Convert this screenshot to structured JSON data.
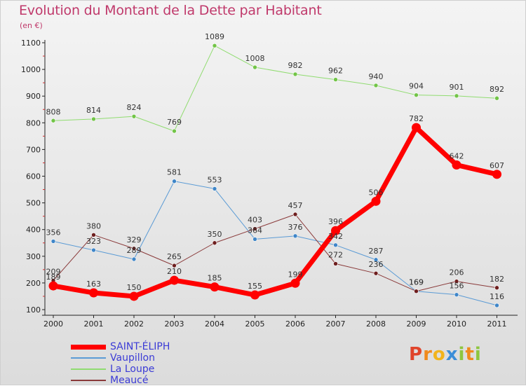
{
  "header": {
    "title": "Evolution du Montant de la Dette par Habitant",
    "subtitle": "(en €)"
  },
  "logo": {
    "text": "Proxiti",
    "letters": [
      {
        "ch": "P",
        "color": "#e0442b"
      },
      {
        "ch": "r",
        "color": "#f08a1c"
      },
      {
        "ch": "o",
        "color": "#f2b41c"
      },
      {
        "ch": "x",
        "color": "#3c8ed8"
      },
      {
        "ch": "i",
        "color": "#8ec63f"
      },
      {
        "ch": "t",
        "color": "#f08a1c"
      },
      {
        "ch": "i",
        "color": "#8ec63f"
      }
    ]
  },
  "chart_data": {
    "type": "line",
    "title": "Evolution du Montant de la Dette par Habitant",
    "xlabel": "",
    "ylabel": "(en €)",
    "ylim": [
      100,
      1100
    ],
    "yticks": [
      100,
      200,
      300,
      400,
      500,
      600,
      700,
      800,
      900,
      1000,
      1100
    ],
    "grid": false,
    "legend_position": "bottom-left",
    "categories": [
      "2000",
      "2001",
      "2002",
      "2003",
      "2004",
      "2005",
      "2006",
      "2007",
      "2008",
      "2009",
      "2010",
      "2011"
    ],
    "series": [
      {
        "name": "Vaupillon",
        "color": "#5b9bd5",
        "point_color": "#3f86c8",
        "width": 1,
        "values": [
          356,
          323,
          289,
          581,
          553,
          364,
          376,
          342,
          287,
          169,
          156,
          116
        ]
      },
      {
        "name": "La Loupe",
        "color": "#90dc70",
        "point_color": "#72c447",
        "width": 1,
        "values": [
          808,
          814,
          824,
          769,
          1089,
          1008,
          982,
          962,
          940,
          904,
          901,
          892
        ]
      },
      {
        "name": "Meaucé",
        "color": "#8a3a3a",
        "point_color": "#6e1f1f",
        "width": 1,
        "values": [
          209,
          380,
          329,
          265,
          350,
          403,
          457,
          272,
          236,
          169,
          206,
          182
        ]
      },
      {
        "name": "SAINT-ÉLIPH",
        "color": "#ff0000",
        "point_color": "#ff0000",
        "width": 7,
        "values": [
          189,
          163,
          150,
          210,
          185,
          155,
          199,
          396,
          506,
          782,
          642,
          607
        ]
      }
    ],
    "legend_order": [
      "SAINT-ÉLIPH",
      "Vaupillon",
      "La Loupe",
      "Meaucé"
    ]
  }
}
